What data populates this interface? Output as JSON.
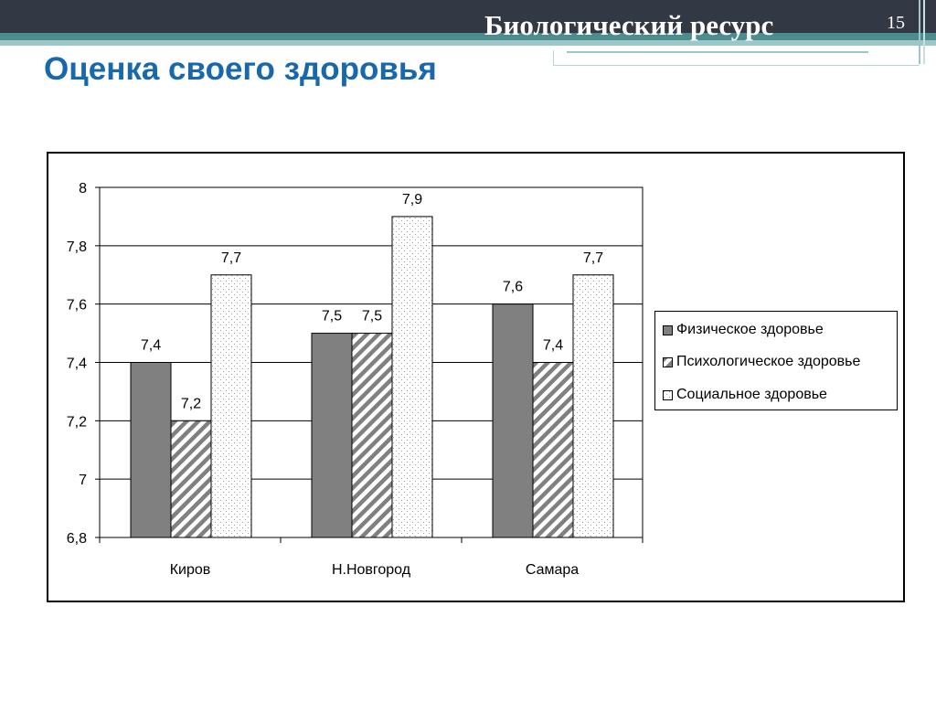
{
  "header": {
    "title": "Биологический ресурс",
    "slide_number": "15"
  },
  "page_title": "Оценка своего здоровья",
  "colors": {
    "header_band": "#333845",
    "title_blue": "#1868ab",
    "physical_fill": "#808080",
    "psych_hatch": "#808080",
    "social_dots": "#9a9a9a"
  },
  "chart_data": {
    "type": "bar",
    "title": "",
    "xlabel": "",
    "ylabel": "",
    "categories": [
      "Киров",
      "Н.Новгород",
      "Самара"
    ],
    "series": [
      {
        "name": "Физическое здоровье",
        "values": [
          7.4,
          7.5,
          7.6
        ],
        "labels": [
          "7,4",
          "7,5",
          "7,6"
        ],
        "pattern": "solid-gray"
      },
      {
        "name": "Психологическое здоровье",
        "values": [
          7.2,
          7.5,
          7.4
        ],
        "labels": [
          "7,2",
          "7,5",
          "7,4"
        ],
        "pattern": "diagonal-hatch"
      },
      {
        "name": "Социальное здоровье",
        "values": [
          7.7,
          7.9,
          7.7
        ],
        "labels": [
          "7,7",
          "7,9",
          "7,7"
        ],
        "pattern": "dotted"
      }
    ],
    "ylim": [
      6.8,
      8
    ],
    "yticks": [
      6.8,
      7,
      7.2,
      7.4,
      7.6,
      7.8,
      8
    ],
    "ytick_labels": [
      "6,8",
      "7",
      "7,2",
      "7,4",
      "7,6",
      "7,8",
      "8"
    ],
    "grid": true,
    "legend_position": "right"
  }
}
